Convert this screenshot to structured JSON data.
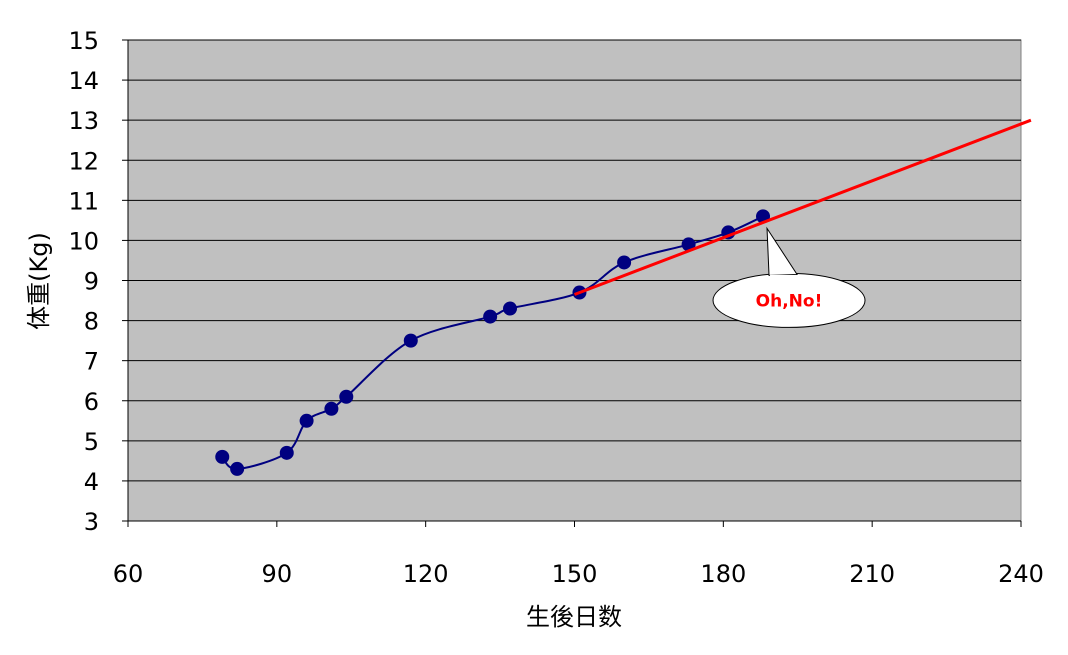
{
  "chart_data": {
    "type": "scatter",
    "xlabel": "生後日数",
    "ylabel": "体重(Kg)",
    "xlim": [
      60,
      240
    ],
    "ylim": [
      3,
      15
    ],
    "xticks": [
      "60",
      "90",
      "120",
      "150",
      "180",
      "210",
      "240"
    ],
    "yticks": [
      "3",
      "4",
      "5",
      "6",
      "7",
      "8",
      "9",
      "10",
      "11",
      "12",
      "13",
      "14",
      "15"
    ],
    "grid": true,
    "legend": "none",
    "plot_background": "#c0c0c0",
    "series": [
      {
        "type": "scatter-smooth-line",
        "color": "#000080",
        "points": [
          {
            "x": 79,
            "y": 4.6
          },
          {
            "x": 82,
            "y": 4.3
          },
          {
            "x": 92,
            "y": 4.7
          },
          {
            "x": 96,
            "y": 5.5
          },
          {
            "x": 101,
            "y": 5.8
          },
          {
            "x": 104,
            "y": 6.1
          },
          {
            "x": 117,
            "y": 7.5
          },
          {
            "x": 133,
            "y": 8.1
          },
          {
            "x": 137,
            "y": 8.3
          },
          {
            "x": 151,
            "y": 8.7
          },
          {
            "x": 160,
            "y": 9.45
          },
          {
            "x": 173,
            "y": 9.9
          },
          {
            "x": 181,
            "y": 10.2
          },
          {
            "x": 188,
            "y": 10.6
          }
        ]
      },
      {
        "type": "trend-line",
        "color": "#ff0000",
        "points": [
          {
            "x": 150,
            "y": 8.65
          },
          {
            "x": 242,
            "y": 13.0
          }
        ]
      }
    ],
    "annotations": [
      {
        "text": "Oh,No!",
        "pointer_to": {
          "x": 188,
          "y": 10.5
        }
      }
    ]
  }
}
